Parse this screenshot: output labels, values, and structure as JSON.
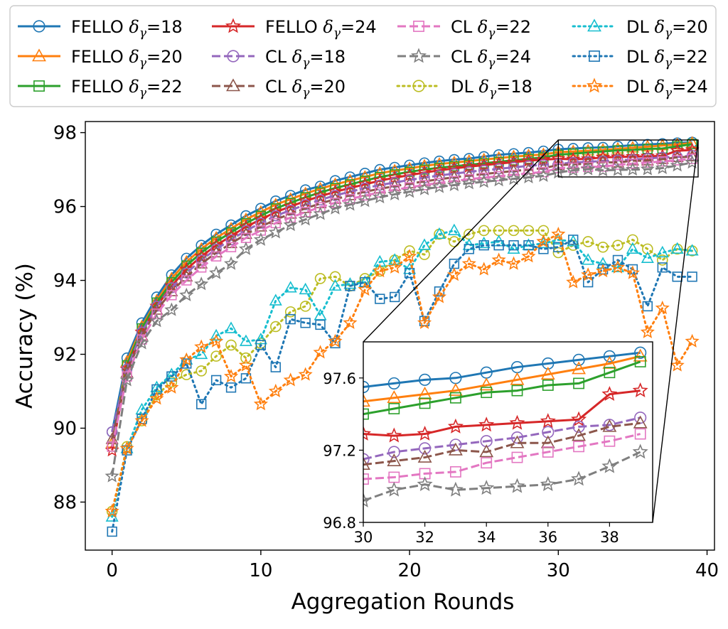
{
  "chart_data": {
    "type": "line",
    "xlabel": "Aggregation Rounds",
    "ylabel": "Accuracy (%)",
    "xlim": [
      -1.8,
      40.5
    ],
    "ylim": [
      86.7,
      98.3
    ],
    "x_ticks": [
      "0",
      "10",
      "20",
      "30",
      "40"
    ],
    "y_ticks": [
      "88",
      "90",
      "92",
      "94",
      "96",
      "98"
    ],
    "grid": false,
    "legend_placement": "top",
    "legend_columns": 4,
    "series": [
      {
        "name": "FELLO δγ=18",
        "label_main": "FELLO",
        "label_sub": "18",
        "color": "#1f77b4",
        "marker": "circle",
        "linestyle": "solid",
        "values": [
          89.9,
          91.9,
          92.85,
          93.55,
          94.15,
          94.6,
          94.95,
          95.25,
          95.5,
          95.75,
          95.95,
          96.15,
          96.3,
          96.45,
          96.55,
          96.7,
          96.8,
          96.9,
          97.0,
          97.06,
          97.12,
          97.18,
          97.23,
          97.27,
          97.3,
          97.35,
          97.4,
          97.43,
          97.46,
          97.5,
          97.55,
          97.57,
          97.59,
          97.6,
          97.63,
          97.66,
          97.68,
          97.7,
          97.72,
          97.74
        ]
      },
      {
        "name": "FELLO δγ=20",
        "label_main": "FELLO",
        "label_sub": "20",
        "color": "#ff7f0e",
        "marker": "triangle",
        "linestyle": "solid",
        "values": [
          89.6,
          91.8,
          92.75,
          93.45,
          94.05,
          94.5,
          94.85,
          95.15,
          95.4,
          95.65,
          95.85,
          96.05,
          96.2,
          96.35,
          96.48,
          96.6,
          96.7,
          96.8,
          96.9,
          96.97,
          97.03,
          97.1,
          97.15,
          97.19,
          97.23,
          97.27,
          97.31,
          97.35,
          97.38,
          97.41,
          97.47,
          97.49,
          97.51,
          97.53,
          97.56,
          97.59,
          97.62,
          97.65,
          97.68,
          97.72
        ]
      },
      {
        "name": "FELLO δγ=22",
        "label_main": "FELLO",
        "label_sub": "22",
        "color": "#2ca02c",
        "marker": "square",
        "linestyle": "solid",
        "values": [
          89.5,
          91.7,
          92.7,
          93.4,
          93.95,
          94.4,
          94.75,
          95.05,
          95.3,
          95.55,
          95.75,
          95.95,
          96.1,
          96.25,
          96.38,
          96.5,
          96.6,
          96.7,
          96.8,
          96.87,
          96.94,
          97.0,
          97.05,
          97.09,
          97.13,
          97.17,
          97.21,
          97.25,
          97.29,
          97.33,
          97.4,
          97.43,
          97.46,
          97.49,
          97.52,
          97.53,
          97.56,
          97.57,
          97.63,
          97.69
        ]
      },
      {
        "name": "FELLO δγ=24",
        "label_main": "FELLO",
        "label_sub": "24",
        "color": "#d62728",
        "marker": "star",
        "linestyle": "solid",
        "values": [
          89.4,
          91.6,
          92.6,
          93.3,
          93.85,
          94.3,
          94.65,
          94.95,
          95.2,
          95.45,
          95.65,
          95.85,
          96.0,
          96.15,
          96.28,
          96.4,
          96.5,
          96.6,
          96.7,
          96.78,
          96.85,
          96.92,
          96.98,
          97.03,
          97.08,
          97.12,
          97.16,
          97.2,
          97.24,
          97.27,
          97.29,
          97.28,
          97.29,
          97.33,
          97.34,
          97.35,
          97.36,
          97.37,
          97.51,
          97.53
        ]
      },
      {
        "name": "CL δγ=18",
        "label_main": "CL",
        "label_sub": "18",
        "color": "#9467bd",
        "marker": "circle",
        "linestyle": "dashed",
        "values": [
          89.9,
          91.6,
          92.6,
          93.3,
          93.8,
          94.2,
          94.55,
          94.85,
          95.1,
          95.35,
          95.55,
          95.75,
          95.9,
          96.05,
          96.18,
          96.3,
          96.4,
          96.5,
          96.58,
          96.65,
          96.72,
          96.78,
          96.84,
          96.89,
          96.94,
          96.98,
          97.02,
          97.06,
          97.1,
          97.13,
          97.15,
          97.19,
          97.21,
          97.23,
          97.25,
          97.27,
          97.3,
          97.33,
          97.34,
          97.38
        ]
      },
      {
        "name": "CL δγ=20",
        "label_main": "CL",
        "label_sub": "20",
        "color": "#8c564b",
        "marker": "triangle",
        "linestyle": "dashed",
        "values": [
          89.7,
          91.5,
          92.5,
          93.2,
          93.7,
          94.1,
          94.45,
          94.75,
          95.0,
          95.25,
          95.45,
          95.65,
          95.8,
          95.95,
          96.08,
          96.2,
          96.3,
          96.4,
          96.48,
          96.55,
          96.62,
          96.68,
          96.74,
          96.79,
          96.84,
          96.88,
          96.92,
          96.96,
          97.0,
          97.04,
          97.12,
          97.14,
          97.16,
          97.2,
          97.19,
          97.24,
          97.24,
          97.28,
          97.33,
          97.35
        ]
      },
      {
        "name": "CL δγ=22",
        "label_main": "CL",
        "label_sub": "22",
        "color": "#e377c2",
        "marker": "square",
        "linestyle": "dashed",
        "values": [
          89.5,
          91.4,
          92.4,
          93.1,
          93.6,
          94.0,
          94.35,
          94.65,
          94.9,
          95.15,
          95.35,
          95.55,
          95.7,
          95.85,
          95.98,
          96.1,
          96.2,
          96.3,
          96.38,
          96.45,
          96.52,
          96.58,
          96.64,
          96.69,
          96.74,
          96.78,
          96.82,
          96.86,
          96.9,
          96.93,
          97.04,
          97.05,
          97.07,
          97.08,
          97.13,
          97.16,
          97.19,
          97.22,
          97.25,
          97.29
        ]
      },
      {
        "name": "CL δγ=24",
        "label_main": "CL",
        "label_sub": "24",
        "color": "#7f7f7f",
        "marker": "star",
        "linestyle": "dashed",
        "values": [
          88.7,
          91.3,
          92.3,
          92.9,
          93.2,
          93.6,
          93.9,
          94.2,
          94.45,
          94.85,
          95.1,
          95.3,
          95.5,
          95.65,
          95.8,
          95.95,
          96.05,
          96.15,
          96.25,
          96.33,
          96.4,
          96.47,
          96.53,
          96.58,
          96.63,
          96.67,
          96.71,
          96.75,
          96.79,
          96.83,
          96.92,
          96.98,
          97.01,
          96.98,
          96.99,
          97.0,
          97.01,
          97.04,
          97.11,
          97.19
        ]
      },
      {
        "name": "DL δγ=18",
        "label_main": "DL",
        "label_sub": "18",
        "color": "#bcbd22",
        "marker": "circle",
        "linestyle": "dotted",
        "values": [
          87.75,
          89.5,
          90.2,
          90.9,
          91.25,
          91.45,
          91.55,
          91.95,
          92.25,
          91.9,
          92.3,
          92.75,
          93.15,
          93.3,
          94.05,
          94.1,
          93.85,
          94.05,
          94.25,
          94.55,
          94.8,
          94.7,
          95.25,
          95.05,
          95.25,
          95.35,
          95.35,
          95.35,
          95.35,
          95.35,
          94.75,
          94.95,
          95.05,
          94.9,
          94.95,
          95.1,
          94.85,
          94.55,
          94.85,
          94.8
        ]
      },
      {
        "name": "DL δγ=20",
        "label_main": "DL",
        "label_sub": "20",
        "color": "#17becf",
        "marker": "triangle",
        "linestyle": "dotted",
        "values": [
          87.6,
          89.45,
          90.5,
          91.1,
          91.45,
          91.85,
          92.0,
          92.5,
          92.7,
          92.35,
          92.4,
          93.45,
          93.8,
          93.75,
          93.05,
          93.85,
          93.9,
          93.95,
          94.5,
          94.55,
          94.3,
          94.95,
          95.25,
          95.35,
          94.95,
          95.0,
          95.05,
          94.85,
          94.95,
          95.0,
          95.1,
          95.05,
          94.55,
          94.45,
          94.35,
          94.85,
          94.6,
          94.75,
          94.85,
          94.8
        ]
      },
      {
        "name": "DL δγ=22",
        "label_main": "DL",
        "label_sub": "22",
        "color": "#1f77b4",
        "marker": "square",
        "linestyle": "dotted",
        "values": [
          87.2,
          89.4,
          90.25,
          91.05,
          91.4,
          91.75,
          90.65,
          91.3,
          91.1,
          91.35,
          92.25,
          91.65,
          92.95,
          92.85,
          92.8,
          92.3,
          93.85,
          93.95,
          93.5,
          93.55,
          94.2,
          92.9,
          93.7,
          94.45,
          94.85,
          94.95,
          94.95,
          94.95,
          94.95,
          94.85,
          94.9,
          95.1,
          93.95,
          94.3,
          94.55,
          94.3,
          93.3,
          94.35,
          94.1,
          94.1
        ]
      },
      {
        "name": "DL δγ=24",
        "label_main": "DL",
        "label_sub": "24",
        "color": "#ff7f0e",
        "marker": "star",
        "linestyle": "dotted",
        "values": [
          87.75,
          89.45,
          90.2,
          90.8,
          91.1,
          91.85,
          92.2,
          92.35,
          91.4,
          91.7,
          90.65,
          91.0,
          91.3,
          91.45,
          92.05,
          92.35,
          92.85,
          93.75,
          94.25,
          94.35,
          94.65,
          92.85,
          93.55,
          94.15,
          94.45,
          94.3,
          94.55,
          94.45,
          94.65,
          95.05,
          95.25,
          93.95,
          94.15,
          94.25,
          94.35,
          94.2,
          92.6,
          93.25,
          91.7,
          92.35
        ]
      }
    ],
    "inset": {
      "xlim": [
        30,
        39.4
      ],
      "ylim": [
        96.8,
        97.8
      ],
      "x_ticks": [
        "30",
        "32",
        "34",
        "36",
        "38"
      ],
      "y_ticks": [
        "96.8",
        "97.2",
        "97.6"
      ],
      "zoom_series": [
        "FELLO δγ=18",
        "FELLO δγ=20",
        "FELLO δγ=22",
        "FELLO δγ=24",
        "CL δγ=18",
        "CL δγ=20",
        "CL δγ=22",
        "CL δγ=24"
      ],
      "zoom_box": {
        "x": [
          30,
          39.4
        ],
        "y": [
          96.8,
          97.8
        ]
      }
    }
  }
}
